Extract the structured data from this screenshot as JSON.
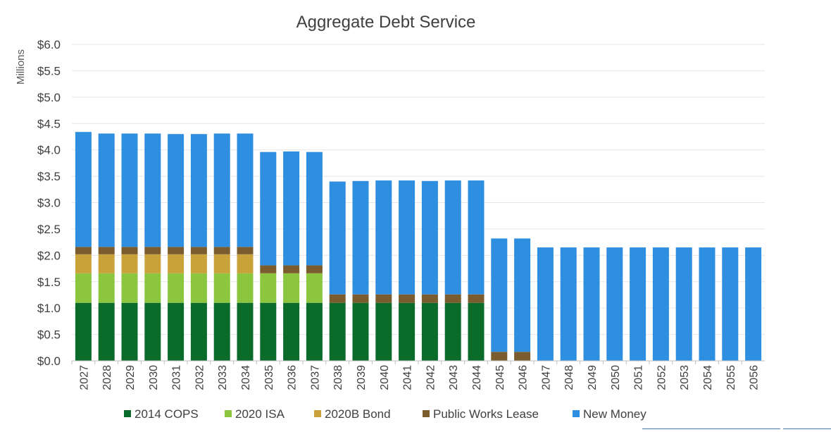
{
  "chart_data": {
    "type": "bar",
    "stacked": true,
    "title": "Aggregate Debt Service",
    "xlabel": "",
    "ylabel": "Millions",
    "ylim": [
      0,
      6.0
    ],
    "yticks": [
      "$0.0",
      "$0.5",
      "$1.0",
      "$1.5",
      "$2.0",
      "$2.5",
      "$3.0",
      "$3.5",
      "$4.0",
      "$4.5",
      "$5.0",
      "$5.5",
      "$6.0"
    ],
    "grid": true,
    "legend_position": "bottom",
    "categories": [
      "2027",
      "2028",
      "2029",
      "2030",
      "2031",
      "2032",
      "2033",
      "2034",
      "2035",
      "2036",
      "2037",
      "2038",
      "2039",
      "2040",
      "2041",
      "2042",
      "2043",
      "2044",
      "2045",
      "2046",
      "2047",
      "2048",
      "2049",
      "2050",
      "2051",
      "2052",
      "2053",
      "2054",
      "2055",
      "2056"
    ],
    "series": [
      {
        "name": "2014 COPS",
        "color": "#0b6b2a",
        "values": [
          1.1,
          1.1,
          1.1,
          1.1,
          1.1,
          1.1,
          1.1,
          1.1,
          1.1,
          1.1,
          1.1,
          1.1,
          1.1,
          1.1,
          1.1,
          1.1,
          1.1,
          1.1,
          0,
          0,
          0,
          0,
          0,
          0,
          0,
          0,
          0,
          0,
          0,
          0
        ]
      },
      {
        "name": "2020 ISA",
        "color": "#8cc63f",
        "values": [
          0.56,
          0.56,
          0.56,
          0.56,
          0.56,
          0.56,
          0.56,
          0.56,
          0.56,
          0.56,
          0.56,
          0,
          0,
          0,
          0,
          0,
          0,
          0,
          0,
          0,
          0,
          0,
          0,
          0,
          0,
          0,
          0,
          0,
          0,
          0
        ]
      },
      {
        "name": "2020B Bond",
        "color": "#c9a23a",
        "values": [
          0.36,
          0.36,
          0.36,
          0.36,
          0.36,
          0.36,
          0.36,
          0.36,
          0,
          0,
          0,
          0,
          0,
          0,
          0,
          0,
          0,
          0,
          0,
          0,
          0,
          0,
          0,
          0,
          0,
          0,
          0,
          0,
          0,
          0
        ]
      },
      {
        "name": "Public Works Lease",
        "color": "#7a5c2e",
        "values": [
          0.14,
          0.14,
          0.14,
          0.14,
          0.14,
          0.14,
          0.14,
          0.14,
          0.15,
          0.15,
          0.15,
          0.16,
          0.16,
          0.16,
          0.16,
          0.16,
          0.16,
          0.16,
          0.17,
          0.17,
          0,
          0,
          0,
          0,
          0,
          0,
          0,
          0,
          0,
          0
        ]
      },
      {
        "name": "New Money",
        "color": "#2e8fe0",
        "values": [
          2.18,
          2.15,
          2.15,
          2.15,
          2.14,
          2.14,
          2.15,
          2.15,
          2.15,
          2.16,
          2.15,
          2.14,
          2.15,
          2.16,
          2.16,
          2.15,
          2.16,
          2.16,
          2.15,
          2.15,
          2.15,
          2.15,
          2.15,
          2.15,
          2.15,
          2.15,
          2.15,
          2.15,
          2.15,
          2.15
        ]
      }
    ]
  }
}
